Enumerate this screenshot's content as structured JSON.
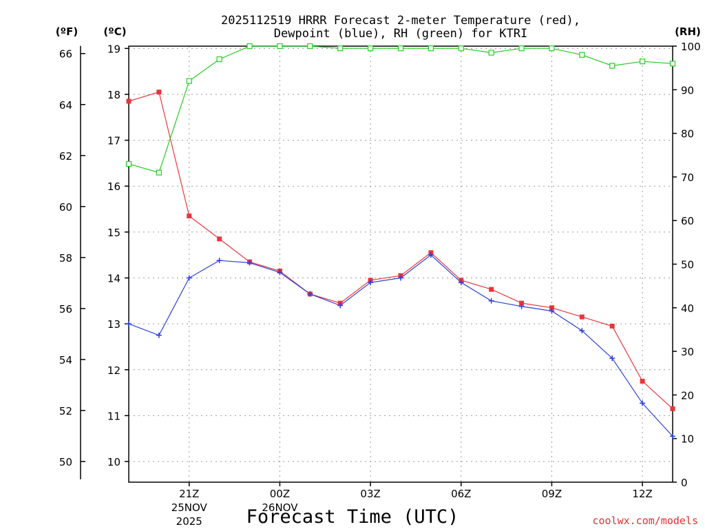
{
  "chart_data": {
    "type": "line",
    "title_line1": "2025112519 HRRR Forecast 2-meter Temperature (red),",
    "title_line2": "Dewpoint (blue), RH (green) for KTRI",
    "xlabel": "Forecast Time (UTC)",
    "credit": "coolwx.com/models",
    "left_axis_f": {
      "label": "(ºF)",
      "ticks": [
        50,
        52,
        54,
        56,
        58,
        60,
        62,
        64,
        66
      ]
    },
    "left_axis_c": {
      "label": "(ºC)",
      "ticks": [
        10,
        11,
        12,
        13,
        14,
        15,
        16,
        17,
        18,
        19
      ],
      "ylim": [
        9.55,
        19.05
      ]
    },
    "right_axis": {
      "label": "(RH)",
      "ticks": [
        0,
        10,
        20,
        30,
        40,
        50,
        60,
        70,
        80,
        90,
        100
      ],
      "ylim": [
        0,
        100
      ]
    },
    "x": [
      19,
      20,
      21,
      22,
      23,
      24,
      25,
      26,
      27,
      28,
      29,
      30,
      31,
      32,
      33,
      34,
      35,
      36,
      37
    ],
    "xlim": [
      19,
      37
    ],
    "x_ticks": [
      {
        "x": 21,
        "label": "21Z",
        "date": "25NOV",
        "year": "2025"
      },
      {
        "x": 24,
        "label": "00Z",
        "date": "26NOV",
        "year": ""
      },
      {
        "x": 27,
        "label": "03Z",
        "date": "",
        "year": ""
      },
      {
        "x": 30,
        "label": "06Z",
        "date": "",
        "year": ""
      },
      {
        "x": 33,
        "label": "09Z",
        "date": "",
        "year": ""
      },
      {
        "x": 36,
        "label": "12Z",
        "date": "",
        "year": ""
      }
    ],
    "series": [
      {
        "name": "Temperature",
        "color": "#e8353c",
        "marker": "filled-square",
        "values": [
          17.85,
          18.05,
          15.35,
          14.85,
          14.35,
          14.15,
          13.65,
          13.45,
          13.95,
          14.05,
          14.55,
          13.95,
          13.75,
          13.45,
          13.35,
          13.15,
          12.95,
          11.75,
          11.15
        ]
      },
      {
        "name": "Dewpoint",
        "color": "#2a3fd8",
        "marker": "plus",
        "values": [
          13.0,
          12.75,
          14.0,
          14.38,
          14.33,
          14.12,
          13.65,
          13.4,
          13.9,
          14.0,
          14.5,
          13.9,
          13.5,
          13.38,
          13.28,
          12.85,
          12.25,
          11.27,
          10.55
        ]
      },
      {
        "name": "RH",
        "color": "#22cc22",
        "marker": "open-square",
        "axis": "right",
        "values": [
          73,
          71,
          92,
          97,
          100,
          100,
          100,
          99.5,
          99.5,
          99.5,
          99.5,
          99.5,
          98.5,
          99.5,
          99.5,
          98,
          95.5,
          96.5,
          96
        ]
      }
    ]
  }
}
